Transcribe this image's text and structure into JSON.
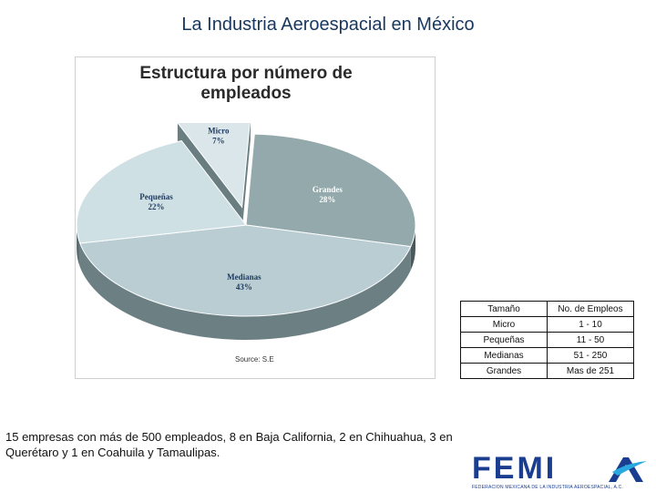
{
  "slide": {
    "title": "La Industria Aeroespacial en México",
    "footnote": "15 empresas con más de 500 empleados, 8 en Baja California, 2 en Chihuahua, 3 en Querétaro y 1 en Coahuila y Tamaulipas."
  },
  "chart_data": {
    "type": "pie",
    "title_line1": "Estructura por número de",
    "title_line2": "empleados",
    "source": "Source: S.E",
    "unit": "%",
    "categories": [
      "Micro",
      "Grandes",
      "Medianas",
      "Pequeñas"
    ],
    "values": [
      7,
      28,
      43,
      22
    ],
    "value_labels": [
      "7%",
      "28%",
      "43%",
      "22%"
    ],
    "exploded": "Micro",
    "colors": [
      "#dbe6ea",
      "#93a9ab",
      "#b9cdd2",
      "#cfe0e4"
    ],
    "side_colors": [
      "#6a7d80",
      "#4a5a5c",
      "#6c8084",
      "#5c6c70"
    ]
  },
  "table": {
    "header": [
      "Tamaño",
      "No. de Empleos"
    ],
    "rows": [
      [
        "Micro",
        "1 - 10"
      ],
      [
        "Pequeñas",
        "11 - 50"
      ],
      [
        "Medianas",
        "51 - 250"
      ],
      [
        "Grandes",
        "Mas de 251"
      ]
    ]
  },
  "logo": {
    "word": "FEMI",
    "tagline": "FEDERACION MEXICANA DE LA INDUSTRIA AEROESPACIAL, A.C.",
    "color": "#1a3d8f",
    "accent": "#29a9e0"
  }
}
